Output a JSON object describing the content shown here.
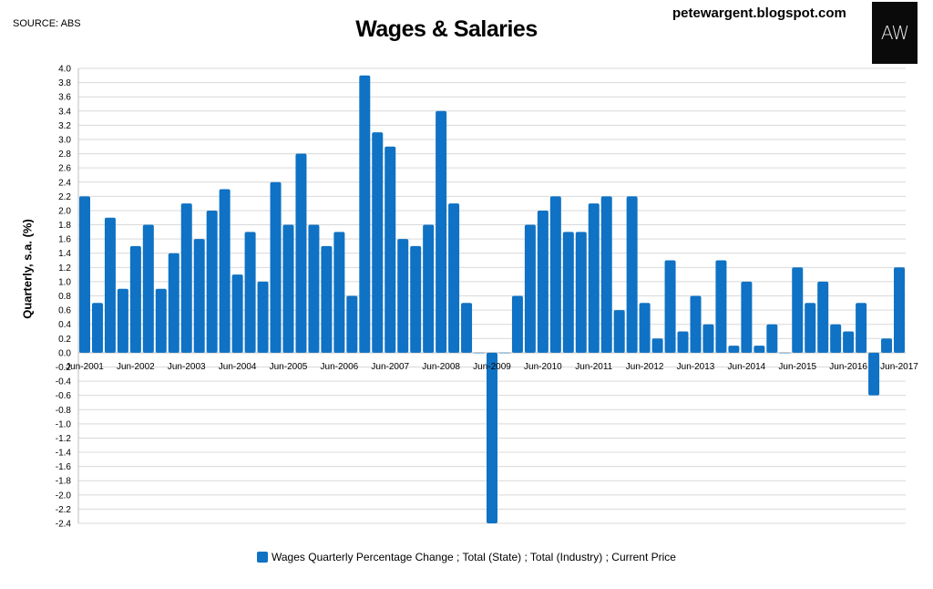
{
  "header": {
    "source": "SOURCE: ABS",
    "title": "Wages & Salaries",
    "blog": "petewargent.blogspot.com",
    "logo_text": "AW"
  },
  "colors": {
    "bar": "#0f72c4",
    "grid": "#d9d9d9",
    "axis": "#bfbfbf"
  },
  "chart_data": {
    "type": "bar",
    "title": "Wages & Salaries",
    "xlabel": "",
    "ylabel": "Quarterly, s.a. (%)",
    "ylim": [
      -2.4,
      4.0
    ],
    "ytick_step": 0.2,
    "grid": true,
    "legend_position": "bottom",
    "tick_labels": [
      "Jun-2001",
      "Jun-2002",
      "Jun-2003",
      "Jun-2004",
      "Jun-2005",
      "Jun-2006",
      "Jun-2007",
      "Jun-2008",
      "Jun-2009",
      "Jun-2010",
      "Jun-2011",
      "Jun-2012",
      "Jun-2013",
      "Jun-2014",
      "Jun-2015",
      "Jun-2016",
      "Jun-2017"
    ],
    "categories": [
      "Jun-2001",
      "Sep-2001",
      "Dec-2001",
      "Mar-2002",
      "Jun-2002",
      "Sep-2002",
      "Dec-2002",
      "Mar-2003",
      "Jun-2003",
      "Sep-2003",
      "Dec-2003",
      "Mar-2004",
      "Jun-2004",
      "Sep-2004",
      "Dec-2004",
      "Mar-2005",
      "Jun-2005",
      "Sep-2005",
      "Dec-2005",
      "Mar-2006",
      "Jun-2006",
      "Sep-2006",
      "Dec-2006",
      "Mar-2007",
      "Jun-2007",
      "Sep-2007",
      "Dec-2007",
      "Mar-2008",
      "Jun-2008",
      "Sep-2008",
      "Dec-2008",
      "Mar-2009",
      "Jun-2009",
      "Sep-2009",
      "Dec-2009",
      "Mar-2010",
      "Jun-2010",
      "Sep-2010",
      "Dec-2010",
      "Mar-2011",
      "Jun-2011",
      "Sep-2011",
      "Dec-2011",
      "Mar-2012",
      "Jun-2012",
      "Sep-2012",
      "Dec-2012",
      "Mar-2013",
      "Jun-2013",
      "Sep-2013",
      "Dec-2013",
      "Mar-2014",
      "Jun-2014",
      "Sep-2014",
      "Dec-2014",
      "Mar-2015",
      "Jun-2015",
      "Sep-2015",
      "Dec-2015",
      "Mar-2016",
      "Jun-2016",
      "Sep-2016",
      "Dec-2016",
      "Mar-2017",
      "Jun-2017"
    ],
    "series": [
      {
        "name": "Wages Quarterly Percentage Change ;  Total (State) ;  Total (Industry) ;  Current Price",
        "values": [
          2.2,
          0.7,
          1.9,
          0.9,
          1.5,
          1.8,
          0.9,
          1.4,
          2.1,
          1.6,
          2.0,
          2.3,
          1.1,
          1.7,
          1.0,
          2.4,
          1.8,
          2.8,
          1.8,
          1.5,
          1.7,
          0.8,
          3.9,
          3.1,
          2.9,
          1.6,
          1.5,
          1.8,
          3.4,
          2.1,
          0.7,
          0.0,
          -2.4,
          0.0,
          0.8,
          1.8,
          2.0,
          2.2,
          1.7,
          1.7,
          2.1,
          2.2,
          0.6,
          2.2,
          0.7,
          0.2,
          1.3,
          0.3,
          0.8,
          0.4,
          1.3,
          0.1,
          1.0,
          0.1,
          0.4,
          0.0,
          1.2,
          0.7,
          1.0,
          0.4,
          0.3,
          0.7,
          -0.6,
          0.2,
          1.2
        ]
      }
    ]
  }
}
